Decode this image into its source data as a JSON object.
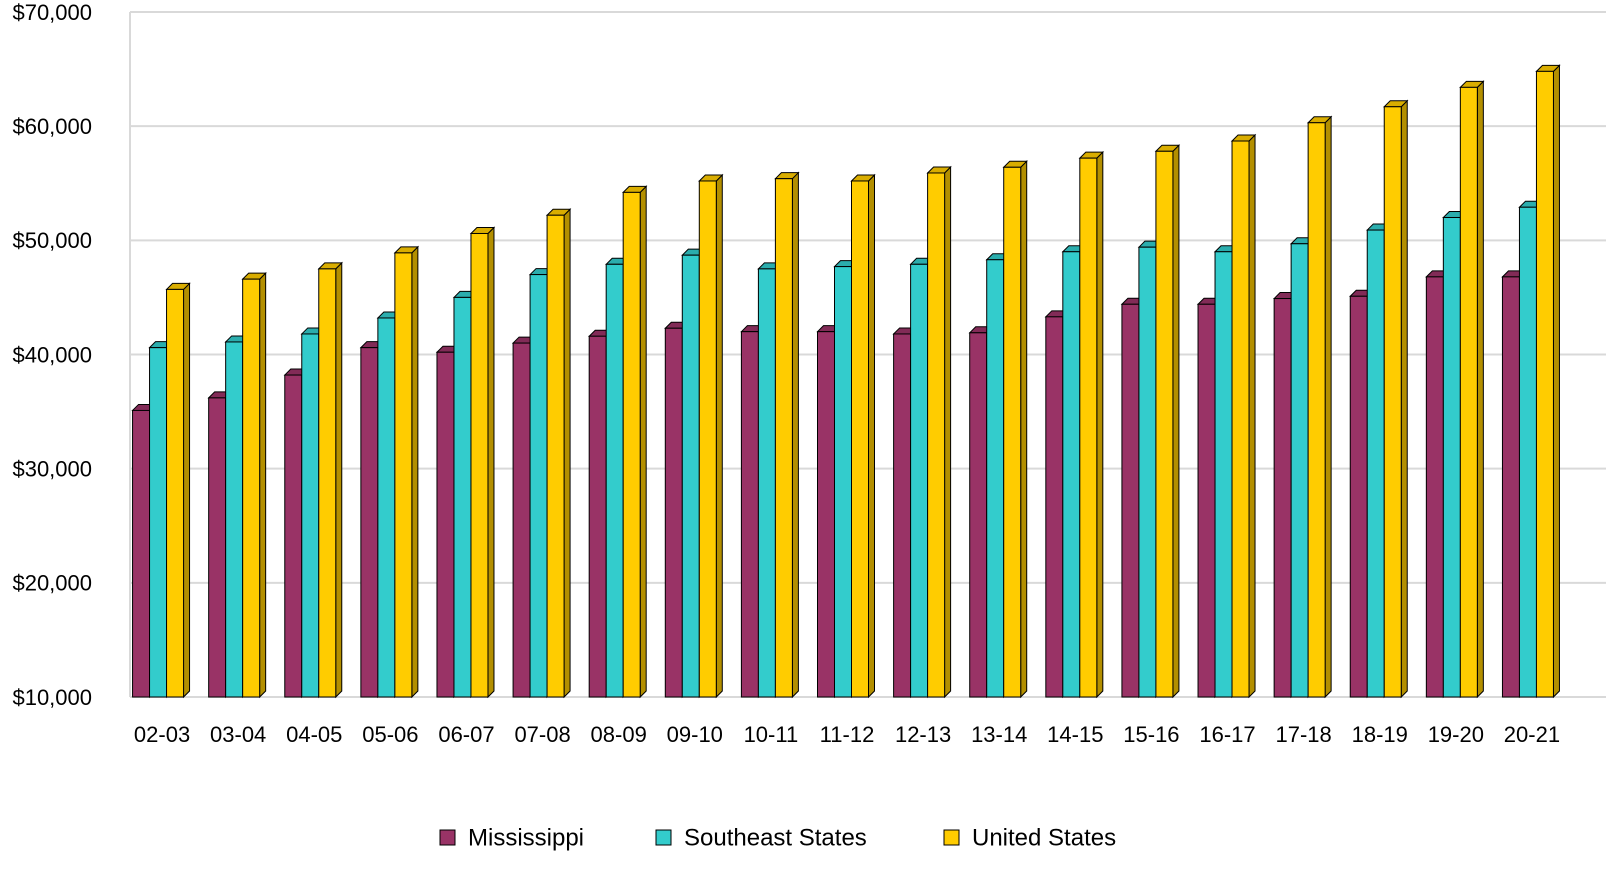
{
  "chart_data": {
    "type": "bar3d",
    "categories": [
      "02-03",
      "03-04",
      "04-05",
      "05-06",
      "06-07",
      "07-08",
      "08-09",
      "09-10",
      "10-11",
      "11-12",
      "12-13",
      "13-14",
      "14-15",
      "15-16",
      "16-17",
      "17-18",
      "18-19",
      "19-20",
      "20-21"
    ],
    "series": [
      {
        "name": "Mississippi",
        "color": "#993366",
        "values": [
          35100,
          36200,
          38200,
          40600,
          40200,
          41000,
          41600,
          42300,
          42000,
          42000,
          41800,
          41900,
          43300,
          44400,
          44400,
          44900,
          45100,
          46800,
          46800
        ]
      },
      {
        "name": "Southeast States",
        "color": "#33cccc",
        "values": [
          40600,
          41100,
          41800,
          43200,
          45000,
          47000,
          47900,
          48700,
          47500,
          47700,
          47900,
          48300,
          49000,
          49400,
          49000,
          49700,
          50900,
          52000,
          52900
        ]
      },
      {
        "name": "United States",
        "color": "#ffcc00",
        "values": [
          45700,
          46600,
          47500,
          48900,
          50600,
          52200,
          54200,
          55200,
          55400,
          55200,
          55900,
          56400,
          57200,
          57800,
          58700,
          60300,
          61700,
          63400,
          64800
        ]
      }
    ],
    "ylim": [
      10000,
      70000
    ],
    "yticks": [
      {
        "value": 10000,
        "label": "$10,000"
      },
      {
        "value": 20000,
        "label": "$20,000"
      },
      {
        "value": 30000,
        "label": "$30,000"
      },
      {
        "value": 40000,
        "label": "$40,000"
      },
      {
        "value": 50000,
        "label": "$50,000"
      },
      {
        "value": 60000,
        "label": "$60,000"
      },
      {
        "value": 70000,
        "label": "$70,000"
      }
    ],
    "grid": true,
    "legend": "bottom"
  }
}
